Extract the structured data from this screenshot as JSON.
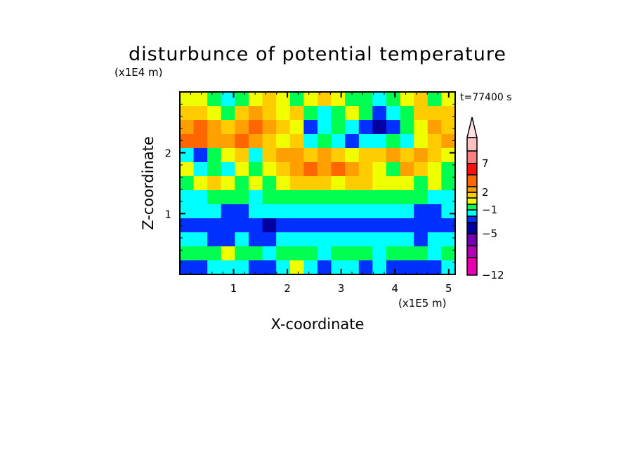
{
  "chart_data": {
    "type": "heatmap",
    "title": "disturbunce of potential temperature",
    "xlabel": "X-coordinate",
    "ylabel": "Z-coordinate",
    "x_scale_label": "(x1E5 m)",
    "y_scale_label": "(x1E4 m)",
    "time_label": "t=77400 s",
    "xlim": [
      0,
      5.12
    ],
    "ylim": [
      0,
      3.0
    ],
    "x_ticks": [
      1,
      2,
      3,
      4,
      5
    ],
    "y_ticks": [
      1,
      2
    ],
    "colorbar": {
      "labels": [
        "7",
        "2",
        "−1",
        "−5",
        "−12"
      ],
      "colors_bottom_to_top": [
        "#e800b0",
        "#b000b0",
        "#7000b0",
        "#0000a0",
        "#0030ff",
        "#00ffff",
        "#00ff50",
        "#f0ff00",
        "#ffcc00",
        "#ffa000",
        "#ff6600",
        "#ff1010",
        "#ff8080",
        "#ffc0c0"
      ],
      "extend_color": "#ffe0e0"
    },
    "field_levels_note": "approximate color-level index per cell, rows from top (z=3) to bottom (z=0)",
    "field_levels": [
      [
        7,
        7,
        6,
        5,
        6,
        7,
        8,
        7,
        6,
        7,
        8,
        7,
        6,
        6,
        5,
        6,
        7,
        8,
        6,
        7
      ],
      [
        8,
        8,
        7,
        6,
        8,
        9,
        8,
        7,
        8,
        6,
        5,
        6,
        7,
        6,
        4,
        5,
        6,
        8,
        8,
        8
      ],
      [
        9,
        10,
        9,
        8,
        9,
        10,
        9,
        8,
        7,
        4,
        5,
        6,
        5,
        4,
        3,
        4,
        6,
        7,
        9,
        8
      ],
      [
        10,
        10,
        9,
        9,
        10,
        9,
        8,
        7,
        8,
        5,
        6,
        5,
        4,
        5,
        5,
        6,
        5,
        7,
        8,
        9
      ],
      [
        5,
        4,
        6,
        7,
        8,
        5,
        8,
        9,
        9,
        8,
        9,
        8,
        7,
        8,
        8,
        9,
        8,
        9,
        8,
        7
      ],
      [
        7,
        5,
        6,
        5,
        7,
        6,
        7,
        8,
        9,
        10,
        9,
        10,
        9,
        8,
        7,
        6,
        9,
        8,
        7,
        6
      ],
      [
        6,
        7,
        8,
        7,
        6,
        7,
        6,
        7,
        8,
        8,
        8,
        7,
        8,
        8,
        7,
        7,
        7,
        6,
        7,
        6
      ],
      [
        5,
        5,
        6,
        6,
        6,
        5,
        6,
        6,
        6,
        6,
        6,
        6,
        6,
        6,
        6,
        6,
        6,
        6,
        5,
        5
      ],
      [
        5,
        5,
        5,
        4,
        4,
        5,
        5,
        5,
        5,
        5,
        5,
        5,
        5,
        5,
        5,
        5,
        5,
        4,
        4,
        5
      ],
      [
        4,
        4,
        4,
        4,
        4,
        4,
        3,
        4,
        4,
        4,
        4,
        4,
        4,
        4,
        4,
        4,
        4,
        4,
        4,
        4
      ],
      [
        5,
        5,
        4,
        4,
        5,
        4,
        4,
        5,
        5,
        5,
        5,
        5,
        5,
        5,
        5,
        5,
        5,
        4,
        5,
        5
      ],
      [
        6,
        6,
        6,
        7,
        6,
        6,
        5,
        6,
        6,
        6,
        5,
        6,
        6,
        6,
        5,
        6,
        6,
        6,
        5,
        6
      ],
      [
        4,
        4,
        5,
        5,
        5,
        4,
        4,
        5,
        7,
        5,
        4,
        5,
        5,
        4,
        5,
        4,
        4,
        4,
        4,
        5
      ]
    ]
  }
}
